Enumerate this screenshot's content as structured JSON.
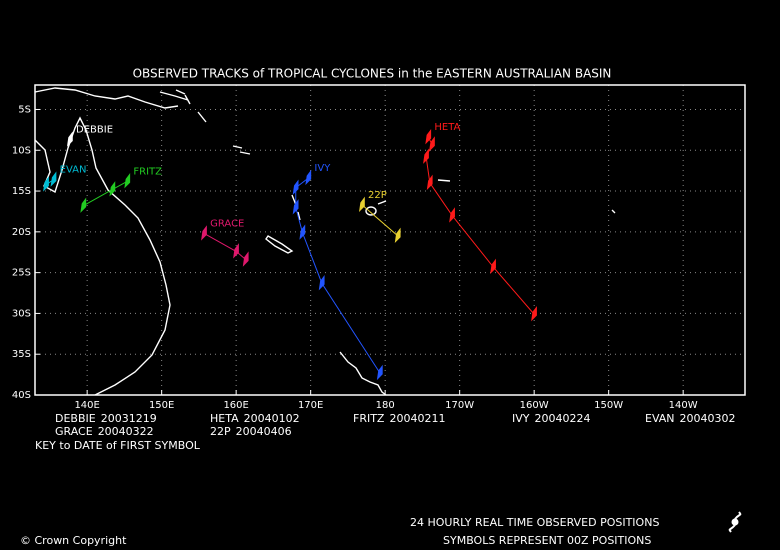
{
  "title": "OBSERVED TRACKS of TROPICAL CYCLONES in the EASTERN AUSTRALIAN BASIN",
  "map": {
    "lon_range": [
      133,
      228.3
    ],
    "lat_range": [
      -2,
      -40
    ],
    "lon_ticks": [
      {
        "value": 140,
        "label": "140E"
      },
      {
        "value": 150,
        "label": "150E"
      },
      {
        "value": 160,
        "label": "160E"
      },
      {
        "value": 170,
        "label": "170E"
      },
      180,
      {
        "value": 190,
        "label": "170W"
      },
      {
        "value": 200,
        "label": "160W"
      },
      {
        "value": 210,
        "label": "150W"
      },
      {
        "value": 220,
        "label": "140W"
      }
    ],
    "lat_ticks": [
      {
        "value": -5,
        "label": "5S"
      },
      {
        "value": -10,
        "label": "10S"
      },
      {
        "value": -15,
        "label": "15S"
      },
      {
        "value": -20,
        "label": "20S"
      },
      {
        "value": -25,
        "label": "25S"
      },
      {
        "value": -30,
        "label": "30S"
      },
      {
        "value": -35,
        "label": "35S"
      },
      {
        "value": -40,
        "label": "40S"
      }
    ],
    "grid": true
  },
  "tracks": [
    {
      "name": "DEBBIE",
      "first_date": "20031219",
      "color": "#ffffff",
      "points": [
        [
          137.7,
          -8.7
        ]
      ]
    },
    {
      "name": "HETA",
      "first_date": "20040102",
      "color": "#ff1a1a",
      "points": [
        [
          185.8,
          -8.4
        ],
        [
          186.3,
          -9.3
        ],
        [
          185.5,
          -10.8
        ],
        [
          186.0,
          -14.0
        ],
        [
          189.0,
          -18.0
        ],
        [
          194.5,
          -24.3
        ],
        [
          200.0,
          -30.1
        ]
      ]
    },
    {
      "name": "FRITZ",
      "first_date": "20040211",
      "color": "#22cc22",
      "points": [
        [
          145.4,
          -13.8
        ],
        [
          143.4,
          -14.8
        ],
        [
          139.5,
          -16.8
        ]
      ]
    },
    {
      "name": "IVY",
      "first_date": "20040224",
      "color": "#2255ff",
      "points": [
        [
          169.7,
          -13.4
        ],
        [
          168.0,
          -14.6
        ],
        [
          168.0,
          -17.0
        ],
        [
          168.9,
          -20.1
        ],
        [
          171.5,
          -26.3
        ],
        [
          179.3,
          -37.3
        ]
      ]
    },
    {
      "name": "EVAN",
      "first_date": "20040302",
      "color": "#00bcd4",
      "points": [
        [
          135.5,
          -13.6
        ],
        [
          134.5,
          -14.2
        ]
      ]
    },
    {
      "name": "GRACE",
      "first_date": "20040322",
      "color": "#e0186c",
      "points": [
        [
          155.7,
          -20.2
        ],
        [
          160.0,
          -22.4
        ],
        [
          161.3,
          -23.4
        ]
      ]
    },
    {
      "name": "22P",
      "first_date": "20040406",
      "color": "#e8d030",
      "points": [
        [
          176.9,
          -16.7
        ],
        [
          181.7,
          -20.5
        ]
      ]
    }
  ],
  "key_note": "KEY to DATE of FIRST SYMBOL",
  "footer": {
    "line1": "24 HOURLY REAL TIME OBSERVED POSITIONS",
    "line2": "SYMBOLS REPRESENT 00Z POSITIONS",
    "copyright": "© Crown Copyright"
  }
}
